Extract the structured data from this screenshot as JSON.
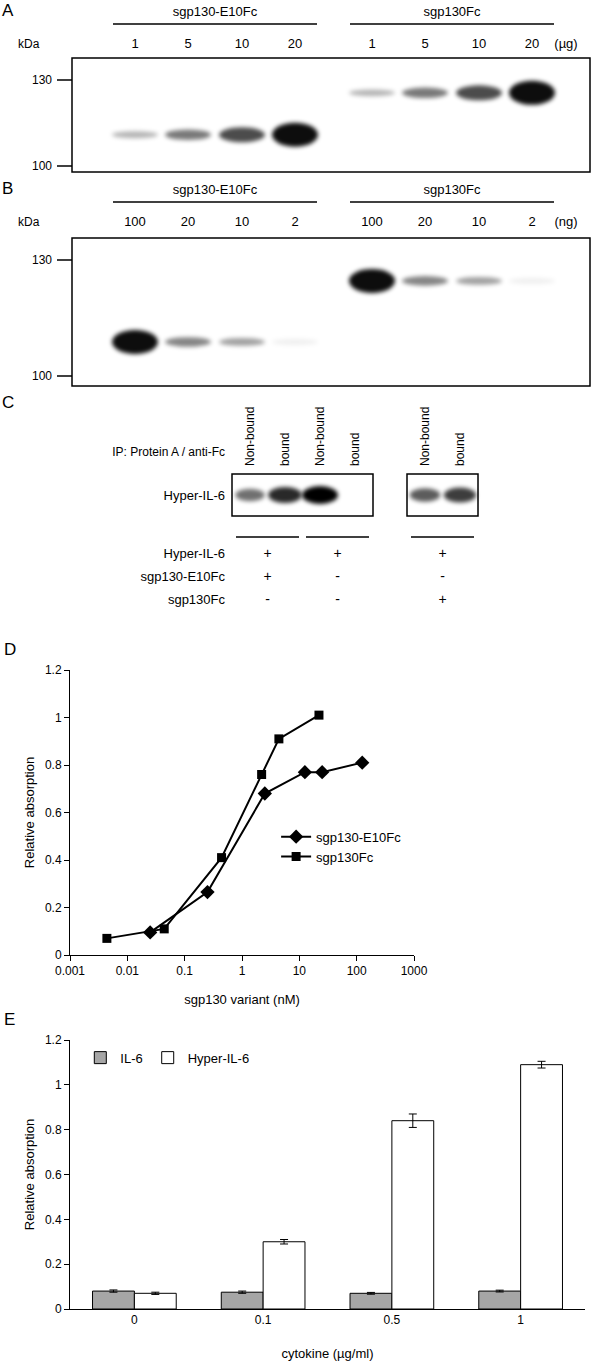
{
  "panels": {
    "A": {
      "panel_label": "A",
      "mw_label": "kDa",
      "mw_markers": [
        130,
        100
      ],
      "unit": "(µg)",
      "groups": [
        {
          "name": "sgp130-E10Fc",
          "band_kda": 110,
          "lanes": [
            1,
            5,
            10,
            20
          ]
        },
        {
          "name": "sgp130Fc",
          "band_kda": 125,
          "lanes": [
            1,
            5,
            10,
            20
          ]
        }
      ]
    },
    "B": {
      "panel_label": "B",
      "mw_label": "kDa",
      "mw_markers": [
        130,
        100
      ],
      "unit": "(ng)",
      "groups": [
        {
          "name": "sgp130-E10Fc",
          "band_kda": 108,
          "lanes": [
            100,
            20,
            10,
            2
          ]
        },
        {
          "name": "sgp130Fc",
          "band_kda": 124,
          "lanes": [
            100,
            20,
            10,
            2
          ]
        }
      ]
    },
    "C": {
      "panel_label": "C",
      "ip_label": "IP: Protein A / anti-Fc",
      "blot_label": "Hyper-IL-6",
      "boxes": [
        [
          "Non-bound",
          "bound",
          "Non-bound",
          "bound"
        ],
        [
          "Non-bound",
          "bound"
        ]
      ],
      "conditions": [
        {
          "name": "Hyper-IL-6",
          "signs": [
            "+",
            "+",
            "+"
          ]
        },
        {
          "name": "sgp130-E10Fc",
          "signs": [
            "+",
            "-",
            "-"
          ]
        },
        {
          "name": "sgp130Fc",
          "signs": [
            "-",
            "-",
            "+"
          ]
        }
      ]
    }
  },
  "chart_data": [
    {
      "type": "line",
      "panel_label": "D",
      "x_label": "sgp130 variant (nM)",
      "y_label": "Relative absorption",
      "log": "x",
      "grid": false,
      "xlim": [
        0.001,
        1000
      ],
      "xticks": [
        0.001,
        0.01,
        0.1,
        1,
        10,
        100,
        1000
      ],
      "ylim": [
        0,
        1.2
      ],
      "yticks": [
        0,
        0.2,
        0.4,
        0.6,
        0.8,
        1,
        1.2
      ],
      "legend": "right",
      "series": [
        {
          "name": "sgp130-E10Fc",
          "color": "#000000",
          "marker": "diamond",
          "x": [
            0.025,
            0.25,
            2.5,
            12.5,
            25,
            125
          ],
          "values": [
            0.095,
            0.265,
            0.68,
            0.77,
            0.77,
            0.81
          ]
        },
        {
          "name": "sgp130Fc",
          "color": "#000000",
          "marker": "square",
          "x": [
            0.0044,
            0.044,
            0.44,
            2.2,
            4.4,
            22
          ],
          "values": [
            0.07,
            0.11,
            0.41,
            0.76,
            0.91,
            1.01
          ]
        }
      ]
    },
    {
      "type": "bar",
      "panel_label": "E",
      "x_label": "cytokine (µg/ml)",
      "y_label": "Relative absorption",
      "grid": false,
      "categories": [
        "0",
        "0.1",
        "0.5",
        "1"
      ],
      "ylim": [
        0,
        1.2
      ],
      "yticks": [
        0,
        0.2,
        0.4,
        0.6,
        0.8,
        1,
        1.2
      ],
      "legend": "top left",
      "series": [
        {
          "name": "IL-6",
          "color": "#a6a6a6",
          "values": [
            0.08,
            0.075,
            0.07,
            0.08
          ],
          "errors": [
            0.005,
            0.005,
            0.004,
            0.004
          ]
        },
        {
          "name": "Hyper-IL-6",
          "color": "#ffffff",
          "values": [
            0.07,
            0.3,
            0.84,
            1.09
          ],
          "errors": [
            0.005,
            0.01,
            0.03,
            0.015
          ]
        }
      ]
    }
  ]
}
